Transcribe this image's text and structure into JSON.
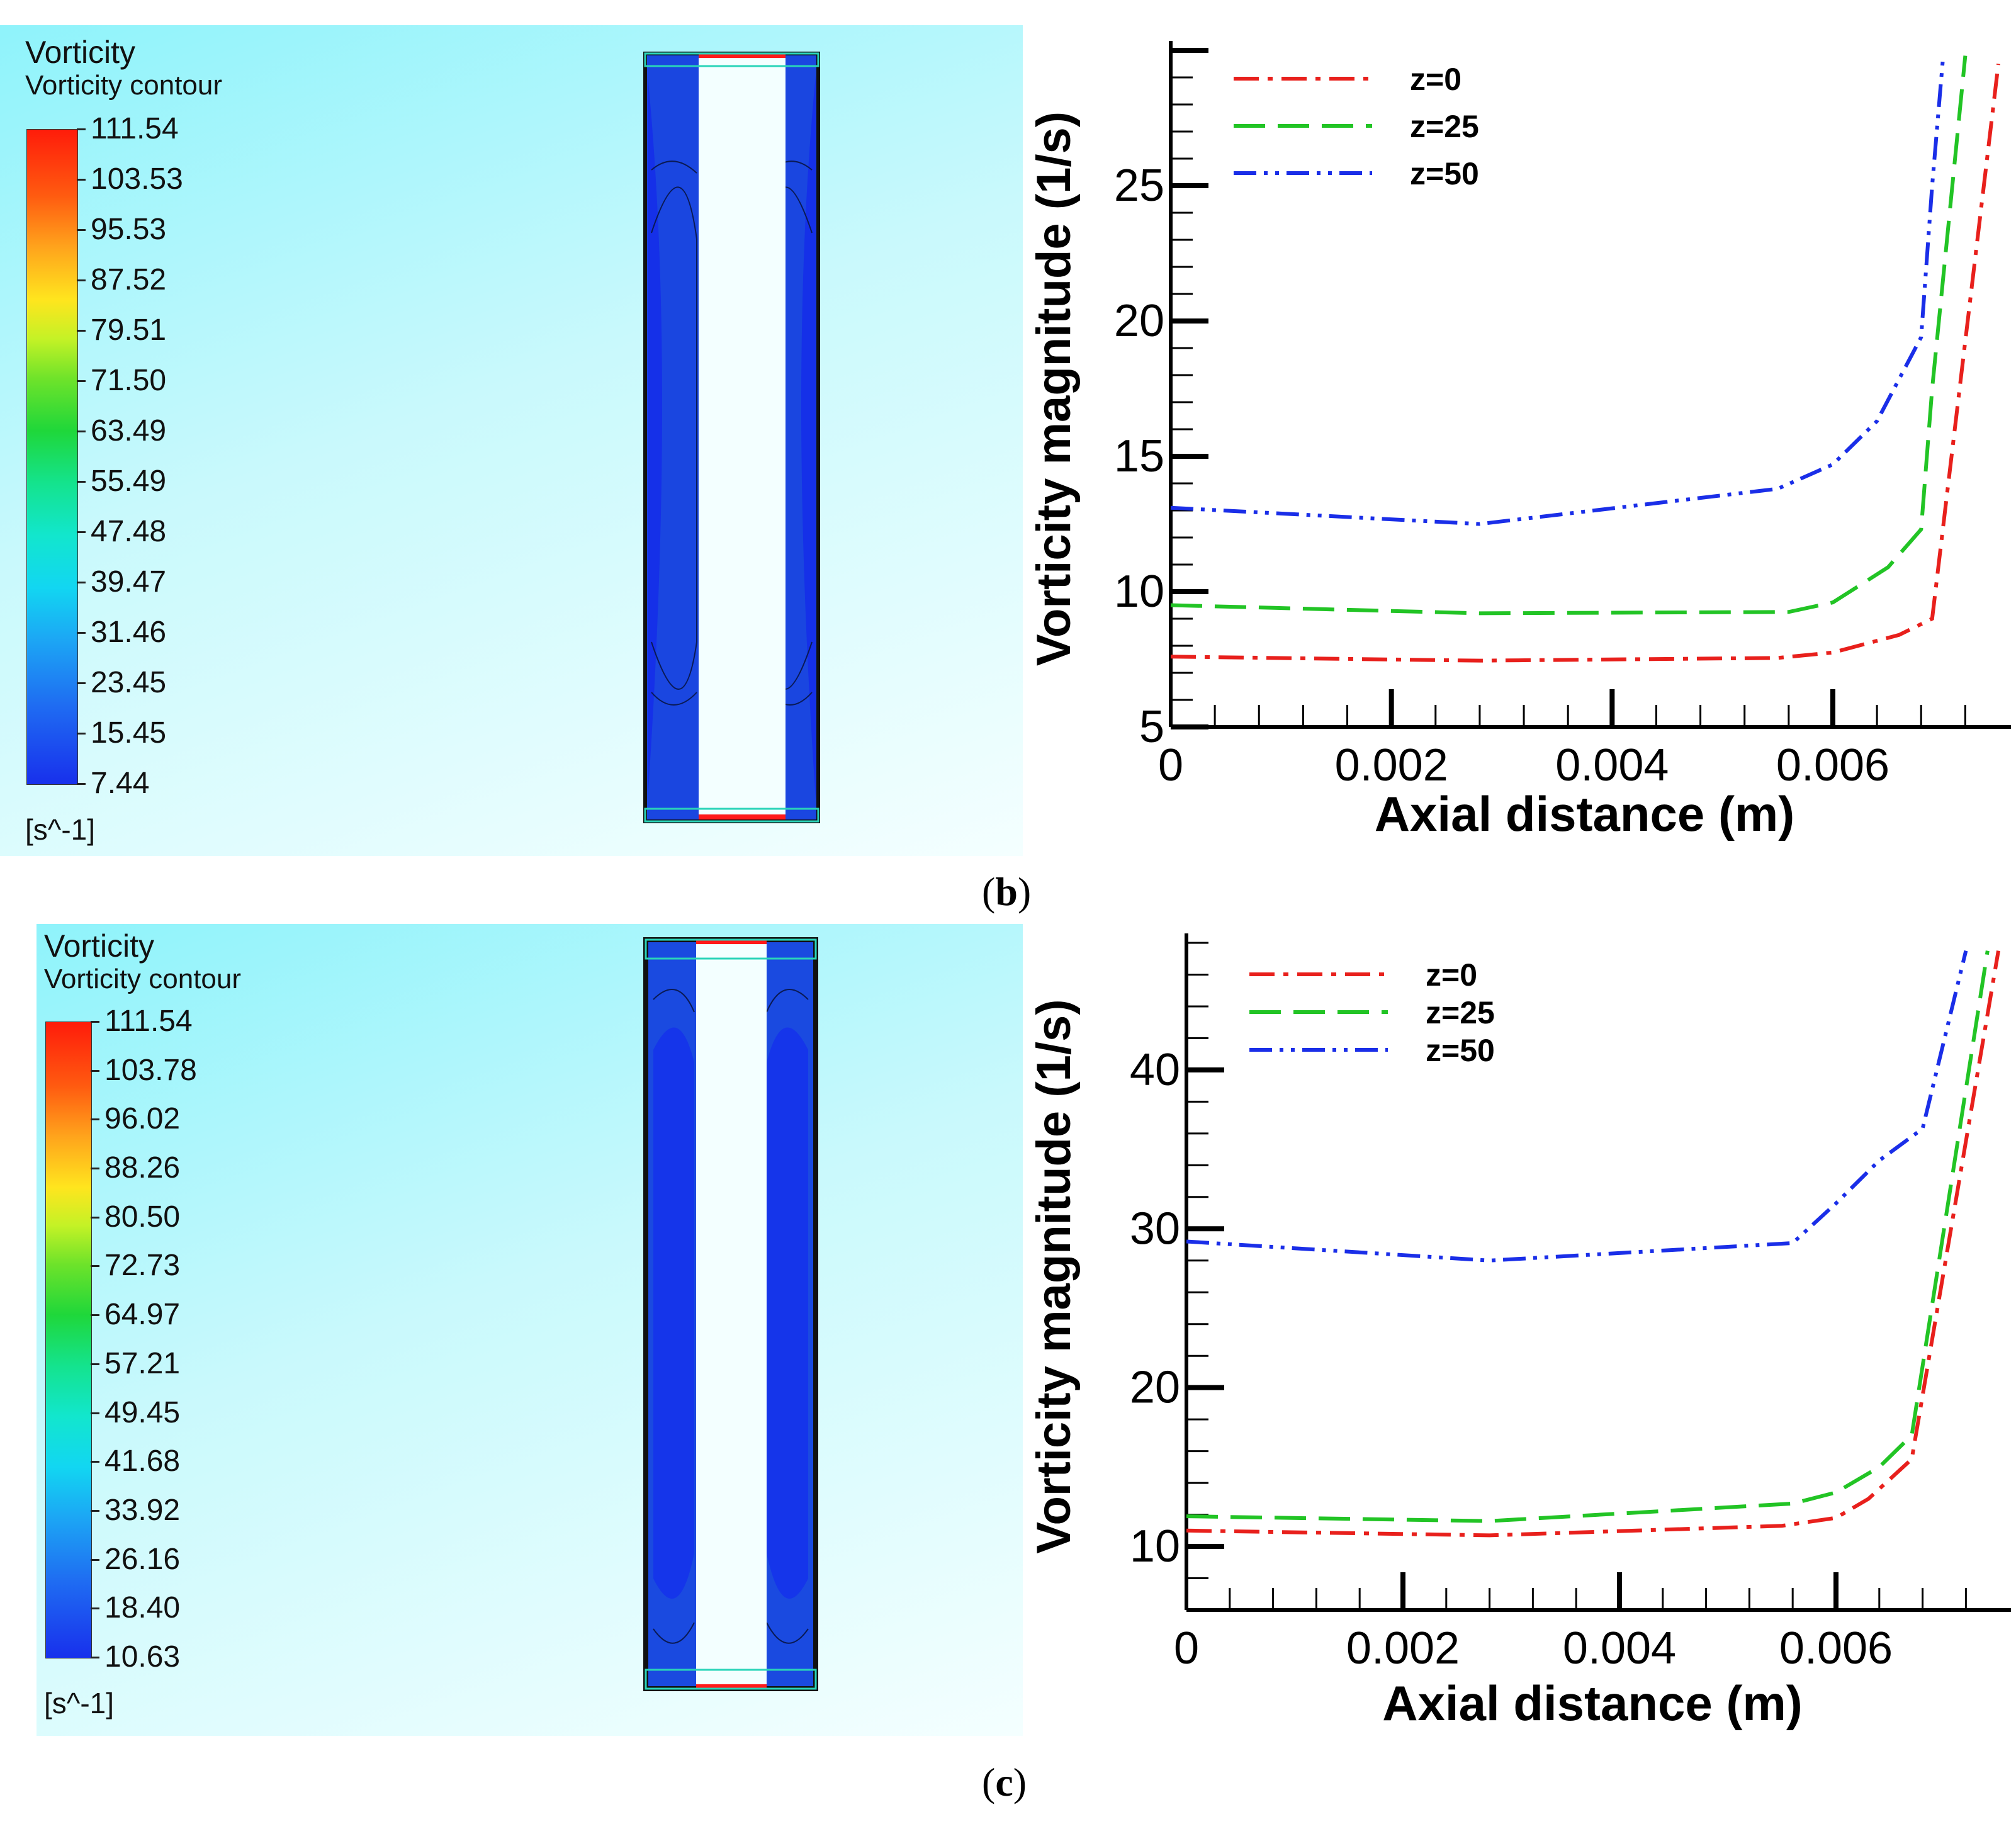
{
  "panels": [
    {
      "caption": "b",
      "contour": {
        "title": "Vorticity",
        "subtitle": "Vorticity contour",
        "unit": "[s^-1]",
        "levels": [
          "111.54",
          "103.53",
          "95.53",
          "87.52",
          "79.51",
          "71.50",
          "63.49",
          "55.49",
          "47.48",
          "39.47",
          "31.46",
          "23.45",
          "15.45",
          "7.44"
        ]
      }
    },
    {
      "caption": "c",
      "contour": {
        "title": "Vorticity",
        "subtitle": "Vorticity contour",
        "unit": "[s^-1]",
        "levels": [
          "111.54",
          "103.78",
          "96.02",
          "88.26",
          "80.50",
          "72.73",
          "64.97",
          "57.21",
          "49.45",
          "41.68",
          "33.92",
          "26.16",
          "18.40",
          "10.63"
        ]
      }
    }
  ],
  "chart_data": [
    {
      "type": "line",
      "xlabel": "Axial distance (m)",
      "ylabel": "Vorticity magnitude (1/s)",
      "xlim": [
        0,
        0.0075
      ],
      "ylim": [
        5,
        30
      ],
      "xticks": [
        "0",
        "0.002",
        "0.004",
        "0.006"
      ],
      "yticks": [
        "5",
        "10",
        "15",
        "20",
        "25"
      ],
      "legend_position": "top-left",
      "series": [
        {
          "name": "z=0",
          "color": "#e8201c",
          "dash": "dashdot",
          "x": [
            0,
            0.0028,
            0.0055,
            0.006,
            0.0066,
            0.0069,
            0.0075
          ],
          "y": [
            7.6,
            7.45,
            7.55,
            7.75,
            8.4,
            9.0,
            29.5
          ]
        },
        {
          "name": "z=25",
          "color": "#22c425",
          "dash": "dash",
          "x": [
            0,
            0.0028,
            0.0056,
            0.006,
            0.0065,
            0.0068,
            0.0069,
            0.0072
          ],
          "y": [
            9.5,
            9.2,
            9.25,
            9.6,
            10.9,
            12.3,
            17.5,
            29.8
          ]
        },
        {
          "name": "z=50",
          "color": "#1a2ee8",
          "dash": "dashdotdot",
          "x": [
            0,
            0.0028,
            0.0055,
            0.006,
            0.0064,
            0.0068,
            0.0069,
            0.007
          ],
          "y": [
            13.1,
            12.5,
            13.8,
            14.7,
            16.3,
            19.4,
            25.0,
            29.8
          ]
        }
      ]
    },
    {
      "type": "line",
      "xlabel": "Axial distance (m)",
      "ylabel": "Vorticity magnitude (1/s)",
      "xlim": [
        0,
        0.0075
      ],
      "ylim": [
        6,
        48
      ],
      "xticks": [
        "0",
        "0.002",
        "0.004",
        "0.006"
      ],
      "yticks": [
        "10",
        "20",
        "30",
        "40"
      ],
      "legend_position": "top-left",
      "series": [
        {
          "name": "z=0",
          "color": "#e8201c",
          "dash": "dashdot",
          "x": [
            0,
            0.0028,
            0.0055,
            0.006,
            0.0063,
            0.0067,
            0.0075
          ],
          "y": [
            11.0,
            10.7,
            11.3,
            11.8,
            13.0,
            15.5,
            47.5
          ]
        },
        {
          "name": "z=25",
          "color": "#22c425",
          "dash": "dash",
          "x": [
            0,
            0.0028,
            0.0056,
            0.006,
            0.0064,
            0.0067,
            0.0074
          ],
          "y": [
            11.9,
            11.6,
            12.7,
            13.4,
            15.0,
            17.0,
            47.5
          ]
        },
        {
          "name": "z=50",
          "color": "#1a2ee8",
          "dash": "dashdotdot",
          "x": [
            0,
            0.0028,
            0.0056,
            0.006,
            0.0064,
            0.0068,
            0.0072
          ],
          "y": [
            29.2,
            28.0,
            29.1,
            31.6,
            34.3,
            36.3,
            47.5
          ]
        }
      ]
    }
  ]
}
